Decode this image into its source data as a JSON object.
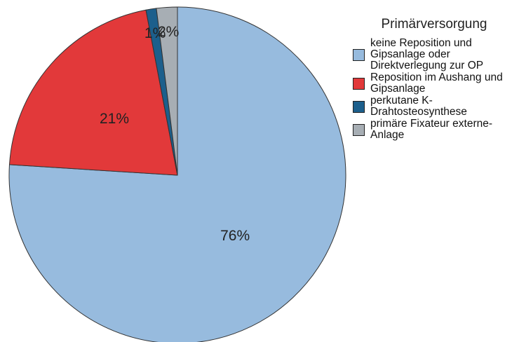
{
  "chart_data": {
    "type": "pie",
    "legend_title": "Primärversorgung",
    "categories": [
      "keine Reposition und Gipsanlage oder Direktverlegung zur OP",
      "Reposition im Aushang und Gipsanlage",
      "perkutane K-Drahtosteosynthese",
      "primäre Fixateur externe-Anlage"
    ],
    "values": [
      76,
      21,
      1,
      2
    ],
    "value_labels": [
      "76%",
      "21%",
      "1%",
      "2%"
    ],
    "colors": [
      "#97bbde",
      "#e2393a",
      "#1c5f8c",
      "#a7aeb4"
    ],
    "legend": "right"
  }
}
